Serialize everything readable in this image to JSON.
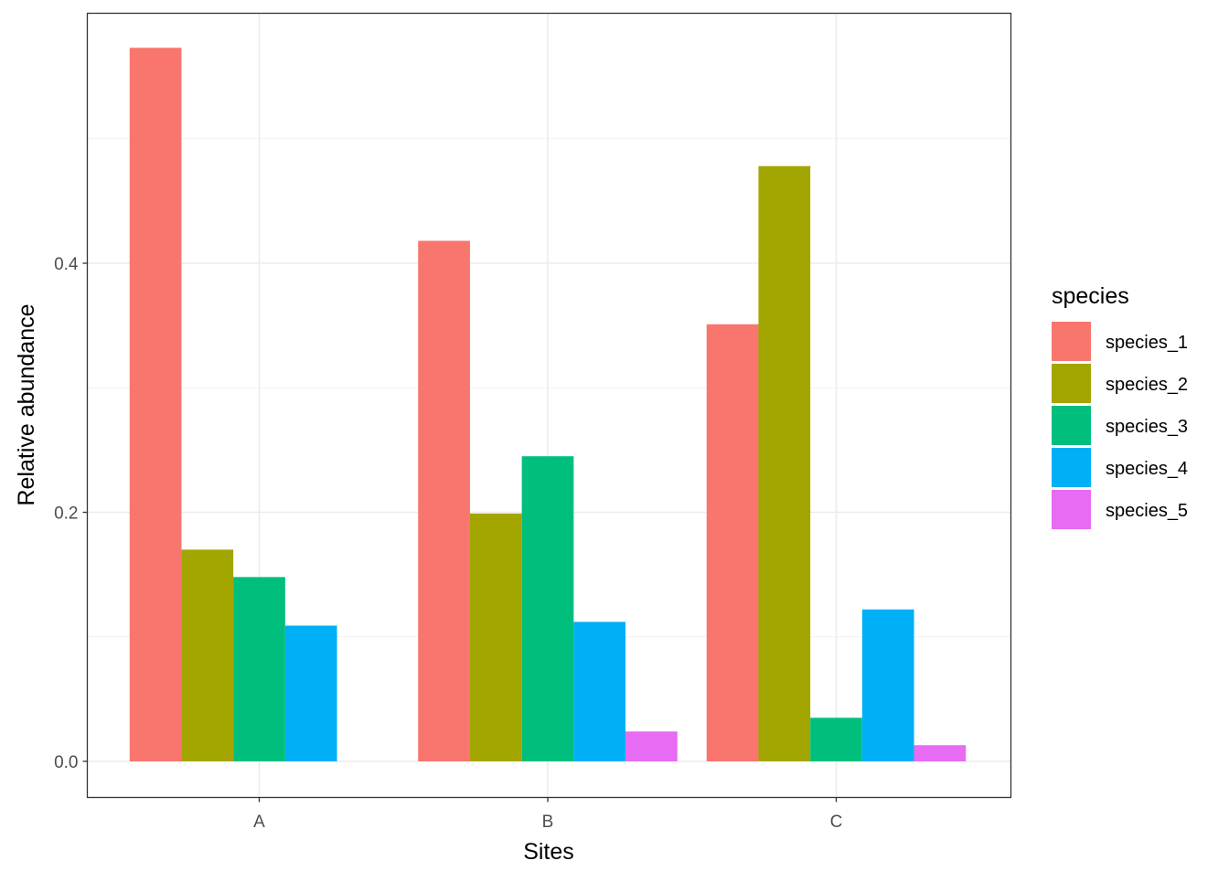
{
  "chart_data": {
    "type": "bar",
    "layout": "grouped",
    "xlabel": "Sites",
    "ylabel": "Relative abundance",
    "categories": [
      "A",
      "B",
      "C"
    ],
    "ylim": [
      -0.028,
      0.6
    ],
    "yticks": [
      {
        "value": 0.0,
        "label": "0.0"
      },
      {
        "value": 0.2,
        "label": "0.2"
      },
      {
        "value": 0.4,
        "label": "0.4"
      }
    ],
    "yminor": [
      0.1,
      0.3,
      0.5
    ],
    "grid": true,
    "legend_title": "species",
    "legend_position": "right",
    "series": [
      {
        "name": "species_1",
        "color": "#F8766D",
        "values": [
          0.573,
          0.418,
          0.351
        ]
      },
      {
        "name": "species_2",
        "color": "#A3A500",
        "values": [
          0.17,
          0.199,
          0.478
        ]
      },
      {
        "name": "species_3",
        "color": "#00BF7D",
        "values": [
          0.148,
          0.245,
          0.035
        ]
      },
      {
        "name": "species_4",
        "color": "#00B0F6",
        "values": [
          0.109,
          0.112,
          0.122
        ]
      },
      {
        "name": "species_5",
        "color": "#E76BF3",
        "values": [
          0.0,
          0.024,
          0.013
        ]
      }
    ]
  }
}
